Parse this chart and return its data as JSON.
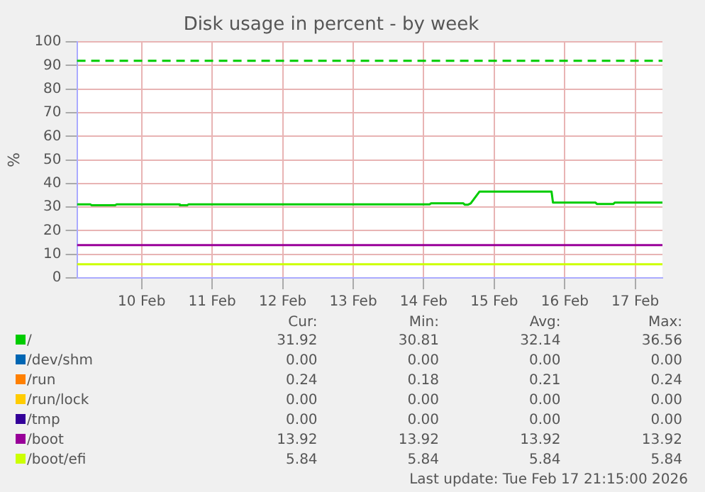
{
  "chart_data": {
    "type": "line",
    "title": "Disk usage in percent - by week",
    "ylabel": "%",
    "xlim": [
      "2026-02-09T14:00",
      "2026-02-17T21:15"
    ],
    "xticks": [
      {
        "value": "2026-02-10T12:00",
        "label": "10 Feb"
      },
      {
        "value": "2026-02-11T12:00",
        "label": "11 Feb"
      },
      {
        "value": "2026-02-12T12:00",
        "label": "12 Feb"
      },
      {
        "value": "2026-02-13T12:00",
        "label": "13 Feb"
      },
      {
        "value": "2026-02-14T12:00",
        "label": "14 Feb"
      },
      {
        "value": "2026-02-15T12:00",
        "label": "15 Feb"
      },
      {
        "value": "2026-02-16T12:00",
        "label": "16 Feb"
      },
      {
        "value": "2026-02-17T12:00",
        "label": "17 Feb"
      }
    ],
    "ylim": [
      0,
      100
    ],
    "yticks": [
      0,
      10,
      20,
      30,
      40,
      50,
      60,
      70,
      80,
      90,
      100
    ],
    "grid": true,
    "legend": "bottom",
    "marker": "none",
    "line_style": "solid",
    "x": [
      "2026-02-09T14:00",
      "2026-02-17T21:15"
    ],
    "series": [
      {
        "name": "/",
        "color": "#00cc00",
        "x": [
          "2026-02-09T14:00",
          "2026-02-09T18:30",
          "2026-02-09T19:00",
          "2026-02-10T03:00",
          "2026-02-10T03:30",
          "2026-02-11T00:45",
          "2026-02-11T01:00",
          "2026-02-11T03:30",
          "2026-02-11T04:00",
          "2026-02-14T14:00",
          "2026-02-14T14:30",
          "2026-02-15T01:30",
          "2026-02-15T02:00",
          "2026-02-15T03:00",
          "2026-02-15T04:00",
          "2026-02-15T07:00",
          "2026-02-16T07:30",
          "2026-02-16T08:00",
          "2026-02-16T22:30",
          "2026-02-16T23:00",
          "2026-02-17T04:30",
          "2026-02-17T05:00",
          "2026-02-17T21:15"
        ],
        "values": [
          31.2,
          31.2,
          30.8,
          30.8,
          31.2,
          31.2,
          30.8,
          30.8,
          31.2,
          31.2,
          31.6,
          31.6,
          31.0,
          31.0,
          31.6,
          36.6,
          36.6,
          31.9,
          31.9,
          31.3,
          31.3,
          31.9,
          31.9
        ]
      },
      {
        "name": "/dev/shm",
        "color": "#0066b3",
        "values": [
          null,
          null
        ]
      },
      {
        "name": "/run",
        "color": "#ff8000",
        "values": [
          null,
          null
        ]
      },
      {
        "name": "/run/lock",
        "color": "#ffcc00",
        "values": [
          null,
          null
        ]
      },
      {
        "name": "/tmp",
        "color": "#330099",
        "values": [
          null,
          null
        ]
      },
      {
        "name": "/boot",
        "color": "#990099",
        "values": [
          13.9,
          13.9
        ]
      },
      {
        "name": "/boot/efi",
        "color": "#ccff00",
        "values": [
          5.8,
          5.8
        ]
      }
    ],
    "ref_lines": [
      {
        "axis": "y",
        "value": 92,
        "label": null,
        "color": "#00cc00",
        "line_style": "dashed"
      }
    ],
    "annotations": [
      "Cur:",
      "Min:",
      "Avg:",
      "Max:",
      "31.92",
      "30.81",
      "32.14",
      "36.56",
      "0.00",
      "0.00",
      "0.00",
      "0.00",
      "0.24",
      "0.18",
      "0.21",
      "0.24",
      "0.00",
      "0.00",
      "0.00",
      "0.00",
      "0.00",
      "0.00",
      "0.00",
      "0.00",
      "13.92",
      "13.92",
      "13.92",
      "13.92",
      "5.84",
      "5.84",
      "5.84",
      "5.84",
      "Last update: Tue Feb 17 21:15:00 2026"
    ]
  }
}
